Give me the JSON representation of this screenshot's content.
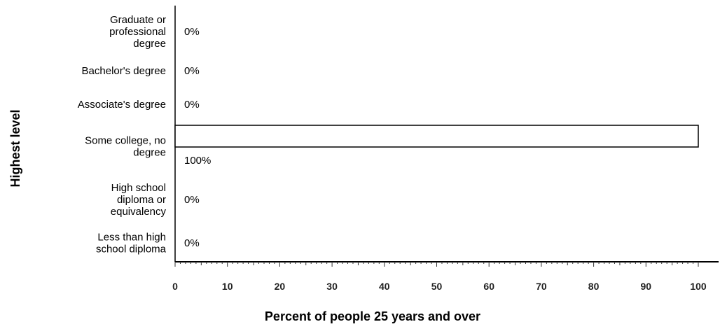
{
  "chart_data": {
    "type": "bar",
    "orientation": "horizontal",
    "categories": [
      "Graduate or professional degree",
      "Bachelor's degree",
      "Associate's degree",
      "Some college, no degree",
      "High school diploma or equivalency",
      "Less than high school diploma"
    ],
    "category_lines": [
      [
        "Graduate or",
        "professional",
        "degree"
      ],
      [
        "Bachelor's degree"
      ],
      [
        "Associate's degree"
      ],
      [
        "Some college, no",
        "degree"
      ],
      [
        "High school",
        "diploma or",
        "equivalency"
      ],
      [
        "Less than high",
        "school diploma"
      ]
    ],
    "values": [
      0,
      0,
      0,
      100,
      0,
      0
    ],
    "data_labels": [
      "0%",
      "0%",
      "0%",
      "100%",
      "0%",
      "0%"
    ],
    "xlabel": "Percent of people 25 years and over",
    "ylabel": "Highest level",
    "xlim": [
      0,
      100
    ],
    "xticks": [
      0,
      10,
      20,
      30,
      40,
      50,
      60,
      70,
      80,
      90,
      100
    ],
    "xtick_labels": [
      "0",
      "10",
      "20",
      "30",
      "40",
      "50",
      "60",
      "70",
      "80",
      "90",
      "100"
    ],
    "legend": "none",
    "grid": false,
    "colors": {
      "bar_fill": "#ffffff",
      "bar_stroke": "#000000",
      "axis": "#000000"
    }
  }
}
